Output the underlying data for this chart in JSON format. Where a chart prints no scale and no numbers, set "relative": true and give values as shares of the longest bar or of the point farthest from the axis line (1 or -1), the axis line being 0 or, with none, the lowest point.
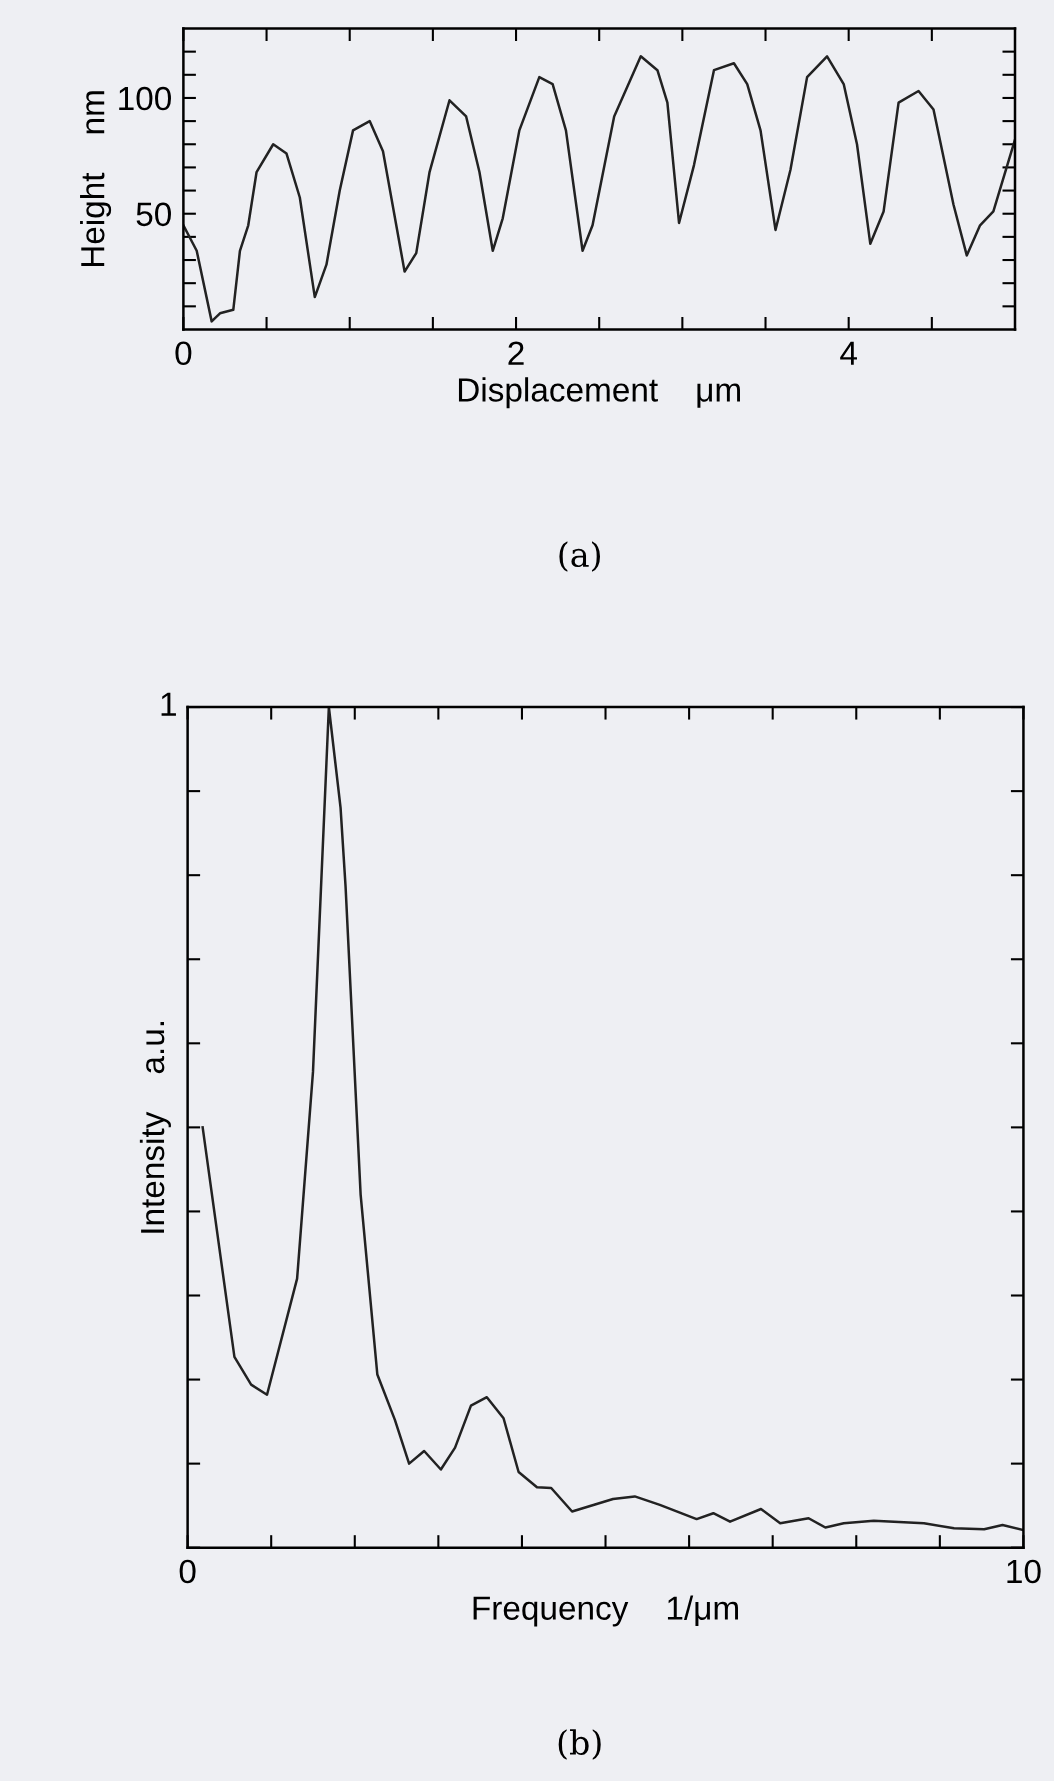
{
  "chart_data": [
    {
      "type": "line",
      "xlabel": "Displacement    μm",
      "ylabel": "Height    nm",
      "annotations": [
        "(a)"
      ],
      "color": "#222222",
      "x": [
        0,
        0.08,
        0.17,
        0.22,
        0.3,
        0.34,
        0.39,
        0.44,
        0.54,
        0.62,
        0.7,
        0.79,
        0.86,
        0.94,
        1.02,
        1.12,
        1.2,
        1.33,
        1.4,
        1.48,
        1.6,
        1.7,
        1.78,
        1.86,
        1.92,
        2.02,
        2.14,
        2.22,
        2.3,
        2.4,
        2.46,
        2.59,
        2.75,
        2.85,
        2.91,
        2.98,
        3.07,
        3.19,
        3.31,
        3.39,
        3.47,
        3.56,
        3.65,
        3.75,
        3.87,
        3.97,
        4.05,
        4.13,
        4.21,
        4.3,
        4.42,
        4.51,
        4.63,
        4.71,
        4.79,
        4.87,
        5.0
      ],
      "values": [
        45,
        34,
        3.5,
        7,
        8.5,
        34,
        45,
        68,
        80,
        76,
        57,
        14,
        28,
        60,
        86,
        90,
        77,
        25,
        33,
        68,
        99,
        92,
        68,
        34,
        48,
        86,
        109,
        106,
        86,
        34,
        45,
        92,
        118,
        112,
        98,
        46,
        71,
        112,
        115,
        106,
        86,
        43,
        69,
        109,
        118,
        106,
        80,
        37,
        51,
        98,
        103,
        95,
        54,
        32,
        45,
        51,
        82
      ],
      "xlim": [
        0,
        5
      ],
      "xticks": [
        0,
        {
          "value": 0.5,
          "label": null
        },
        {
          "value": 1,
          "label": null
        },
        {
          "value": 1.5,
          "label": null
        },
        2,
        {
          "value": 2.5,
          "label": null
        },
        {
          "value": 3,
          "label": null
        },
        {
          "value": 3.5,
          "label": null
        },
        4,
        {
          "value": 4.5,
          "label": null
        }
      ],
      "ylim": [
        0,
        130
      ],
      "yticks": [
        {
          "value": 10,
          "label": null
        },
        {
          "value": 20,
          "label": null
        },
        {
          "value": 30,
          "label": null
        },
        {
          "value": 40,
          "label": null
        },
        50,
        {
          "value": 60,
          "label": null
        },
        {
          "value": 70,
          "label": null
        },
        {
          "value": 80,
          "label": null
        },
        {
          "value": 90,
          "label": null
        },
        100,
        {
          "value": 110,
          "label": null
        },
        {
          "value": 120,
          "label": null
        }
      ],
      "grid": false,
      "legend": false
    },
    {
      "type": "line",
      "xlabel": "Frequency    1/μm",
      "ylabel": "Intensity    a.u.",
      "annotations": [
        "1",
        "(b)"
      ],
      "relative": true,
      "color": "#222222",
      "x": [
        0.18,
        0.56,
        0.76,
        0.95,
        1.31,
        1.5,
        1.69,
        1.83,
        1.89,
        2.07,
        2.27,
        2.48,
        2.65,
        2.83,
        3.03,
        3.2,
        3.39,
        3.58,
        3.78,
        3.96,
        4.18,
        4.35,
        4.6,
        5.09,
        5.35,
        5.65,
        6.09,
        6.29,
        6.49,
        6.86,
        7.09,
        7.43,
        7.63,
        7.85,
        8.21,
        8.81,
        9.17,
        9.53,
        9.75,
        10.0
      ],
      "values": [
        0.5,
        0.227,
        0.194,
        0.182,
        0.32,
        0.566,
        1.0,
        0.88,
        0.786,
        0.42,
        0.206,
        0.152,
        0.1,
        0.115,
        0.093,
        0.119,
        0.169,
        0.179,
        0.154,
        0.09,
        0.072,
        0.071,
        0.043,
        0.058,
        0.061,
        0.051,
        0.034,
        0.041,
        0.031,
        0.046,
        0.029,
        0.035,
        0.024,
        0.029,
        0.032,
        0.029,
        0.023,
        0.022,
        0.027,
        0.021
      ],
      "xlim": [
        0,
        10
      ],
      "xticks": [
        0,
        {
          "value": 1,
          "label": null
        },
        {
          "value": 2,
          "label": null
        },
        {
          "value": 3,
          "label": null
        },
        {
          "value": 4,
          "label": null
        },
        {
          "value": 5,
          "label": null
        },
        {
          "value": 6,
          "label": null
        },
        {
          "value": 7,
          "label": null
        },
        {
          "value": 8,
          "label": null
        },
        {
          "value": 9,
          "label": null
        },
        10
      ],
      "grid": false,
      "legend": false
    }
  ]
}
